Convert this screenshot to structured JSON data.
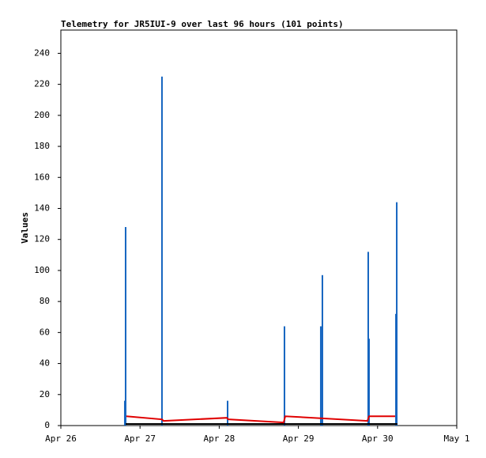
{
  "chart_data": {
    "type": "line",
    "title": "Telemetry for JR5IUI-9 over last 96 hours (101 points)",
    "y_label": "Values",
    "xlim": [
      0,
      5
    ],
    "xticks": [
      {
        "value": 0,
        "label": "Apr 26"
      },
      {
        "value": 1,
        "label": "Apr 27"
      },
      {
        "value": 2,
        "label": "Apr 28"
      },
      {
        "value": 3,
        "label": "Apr 29"
      },
      {
        "value": 4,
        "label": "Apr 30"
      },
      {
        "value": 5,
        "label": "May 1"
      }
    ],
    "ylim": [
      0,
      255
    ],
    "yticks": [
      0,
      20,
      40,
      60,
      80,
      100,
      120,
      140,
      160,
      180,
      200,
      220,
      240
    ],
    "series": [
      {
        "type": "impulse",
        "color": "#1565c0",
        "x": [
          0.808,
          0.818,
          1.277,
          2.106,
          2.824,
          3.283,
          3.303,
          3.882,
          3.892,
          4.232,
          4.242
        ],
        "values": [
          16,
          128,
          225,
          16,
          64,
          64,
          97,
          112,
          56,
          72,
          144
        ]
      },
      {
        "type": "line",
        "color": "#000000",
        "x": [
          0.818,
          4.25
        ],
        "values": [
          1,
          1
        ]
      },
      {
        "type": "line",
        "color": "#e00000",
        "x": [
          0.828,
          1.277,
          1.297,
          2.096,
          2.116,
          2.814,
          2.834,
          3.872,
          3.892,
          4.222
        ],
        "values": [
          6,
          4,
          3,
          5,
          4,
          2,
          6,
          3,
          6,
          6
        ]
      }
    ]
  }
}
